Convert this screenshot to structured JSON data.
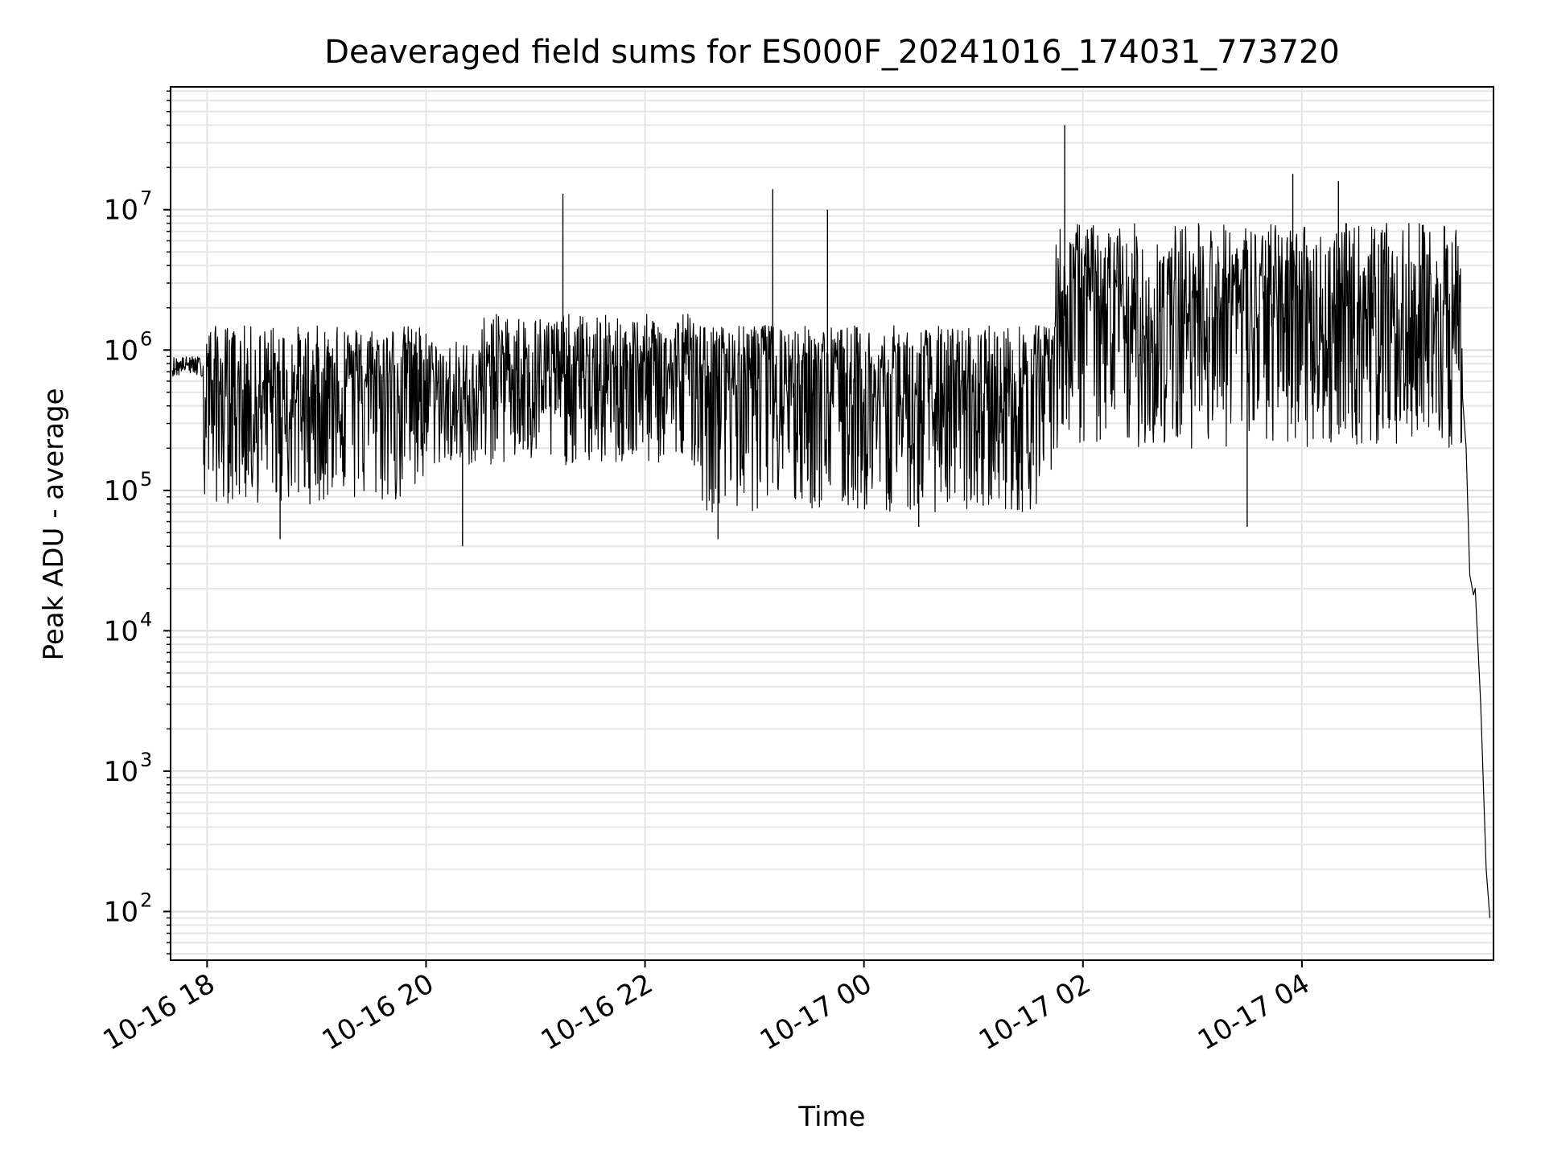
{
  "figure": {
    "title": "Deaveraged field sums for ES000F_20241016_174031_773720"
  },
  "chart_data": {
    "type": "line",
    "title": "Deaveraged field sums for ES000F_20241016_174031_773720",
    "xlabel": "Time",
    "ylabel": "Peak ADU - average",
    "xscale": "time",
    "yscale": "log",
    "xlim": [
      "2024-10-16 17:40",
      "2024-10-17 05:45"
    ],
    "ylim": [
      45,
      75000000
    ],
    "grid": "on (major and minor, light gray)",
    "legend": "none",
    "line_color": "#000000",
    "x_ticks": [
      "10-16 18",
      "10-16 20",
      "10-16 22",
      "10-17 00",
      "10-17 02",
      "10-17 04"
    ],
    "x_tick_values": [
      "2024-10-16 18:00",
      "2024-10-16 20:00",
      "2024-10-16 22:00",
      "2024-10-17 00:00",
      "2024-10-17 02:00",
      "2024-10-17 04:00"
    ],
    "y_ticks": [
      {
        "base": "10",
        "exp": "2",
        "value": 100
      },
      {
        "base": "10",
        "exp": "3",
        "value": 1000
      },
      {
        "base": "10",
        "exp": "4",
        "value": 10000
      },
      {
        "base": "10",
        "exp": "5",
        "value": 100000
      },
      {
        "base": "10",
        "exp": "6",
        "value": 1000000
      },
      {
        "base": "10",
        "exp": "7",
        "value": 10000000
      }
    ],
    "envelope_points": [
      {
        "x": "2024-10-16 17:41",
        "y": 750000
      },
      {
        "x": "2024-10-16 17:55",
        "y": 800000
      },
      {
        "x": "2024-10-16 18:00",
        "y": 550000
      },
      {
        "x": "2024-10-16 18:20",
        "y": 450000
      },
      {
        "x": "2024-10-16 18:40",
        "y": 400000
      },
      {
        "x": "2024-10-16 19:00",
        "y": 500000
      },
      {
        "x": "2024-10-16 19:30",
        "y": 550000
      },
      {
        "x": "2024-10-16 19:55",
        "y": 700000
      },
      {
        "x": "2024-10-16 20:20",
        "y": 300000
      },
      {
        "x": "2024-10-16 20:40",
        "y": 900000
      },
      {
        "x": "2024-10-16 21:00",
        "y": 600000
      },
      {
        "x": "2024-10-16 21:20",
        "y": 700000
      },
      {
        "x": "2024-10-16 21:40",
        "y": 500000
      },
      {
        "x": "2024-10-16 22:00",
        "y": 650000
      },
      {
        "x": "2024-10-16 22:30",
        "y": 600000
      },
      {
        "x": "2024-10-16 22:50",
        "y": 700000
      },
      {
        "x": "2024-10-16 23:10",
        "y": 800000
      },
      {
        "x": "2024-10-16 23:40",
        "y": 600000
      },
      {
        "x": "2024-10-17 00:10",
        "y": 400000
      },
      {
        "x": "2024-10-17 00:40",
        "y": 350000
      },
      {
        "x": "2024-10-17 01:10",
        "y": 350000
      },
      {
        "x": "2024-10-17 01:35",
        "y": 600000
      },
      {
        "x": "2024-10-17 01:55",
        "y": 2500000
      },
      {
        "x": "2024-10-17 02:20",
        "y": 1500000
      },
      {
        "x": "2024-10-17 02:45",
        "y": 1200000
      },
      {
        "x": "2024-10-17 03:10",
        "y": 2500000
      },
      {
        "x": "2024-10-17 03:35",
        "y": 1500000
      },
      {
        "x": "2024-10-17 04:00",
        "y": 2500000
      },
      {
        "x": "2024-10-17 04:20",
        "y": 800000
      },
      {
        "x": "2024-10-17 04:40",
        "y": 2000000
      },
      {
        "x": "2024-10-17 05:00",
        "y": 700000
      },
      {
        "x": "2024-10-17 05:20",
        "y": 1500000
      },
      {
        "x": "2024-10-17 05:27",
        "y": 700000
      },
      {
        "x": "2024-10-17 05:30",
        "y": 200000
      },
      {
        "x": "2024-10-17 05:32",
        "y": 25000
      },
      {
        "x": "2024-10-17 05:34",
        "y": 18000
      },
      {
        "x": "2024-10-17 05:35",
        "y": 20000
      },
      {
        "x": "2024-10-17 05:38",
        "y": 3000
      },
      {
        "x": "2024-10-17 05:41",
        "y": 200
      },
      {
        "x": "2024-10-17 05:43",
        "y": 90
      }
    ],
    "spikes": [
      {
        "x": "2024-10-16 21:15",
        "y": 13000000
      },
      {
        "x": "2024-10-16 23:10",
        "y": 14000000
      },
      {
        "x": "2024-10-16 23:40",
        "y": 10000000
      },
      {
        "x": "2024-10-17 01:50",
        "y": 40000000
      },
      {
        "x": "2024-10-17 03:55",
        "y": 18000000
      },
      {
        "x": "2024-10-17 04:20",
        "y": 16000000
      },
      {
        "x": "2024-10-16 18:40",
        "y": 45000
      },
      {
        "x": "2024-10-16 20:20",
        "y": 40000
      },
      {
        "x": "2024-10-16 22:40",
        "y": 45000
      },
      {
        "x": "2024-10-17 00:30",
        "y": 55000
      },
      {
        "x": "2024-10-17 03:30",
        "y": 55000
      }
    ],
    "noise_band": [
      {
        "start": "2024-10-16 17:40",
        "end": "2024-10-16 17:58",
        "lo": 650000,
        "hi": 900000
      },
      {
        "start": "2024-10-16 17:58",
        "end": "2024-10-16 20:00",
        "lo": 80000,
        "hi": 1500000
      },
      {
        "start": "2024-10-16 20:00",
        "end": "2024-10-16 20:30",
        "lo": 150000,
        "hi": 1200000
      },
      {
        "start": "2024-10-16 20:30",
        "end": "2024-10-16 22:30",
        "lo": 150000,
        "hi": 1800000
      },
      {
        "start": "2024-10-16 22:30",
        "end": "2024-10-17 01:45",
        "lo": 70000,
        "hi": 1500000
      },
      {
        "start": "2024-10-17 01:45",
        "end": "2024-10-17 05:28",
        "lo": 200000,
        "hi": 8000000
      }
    ]
  }
}
